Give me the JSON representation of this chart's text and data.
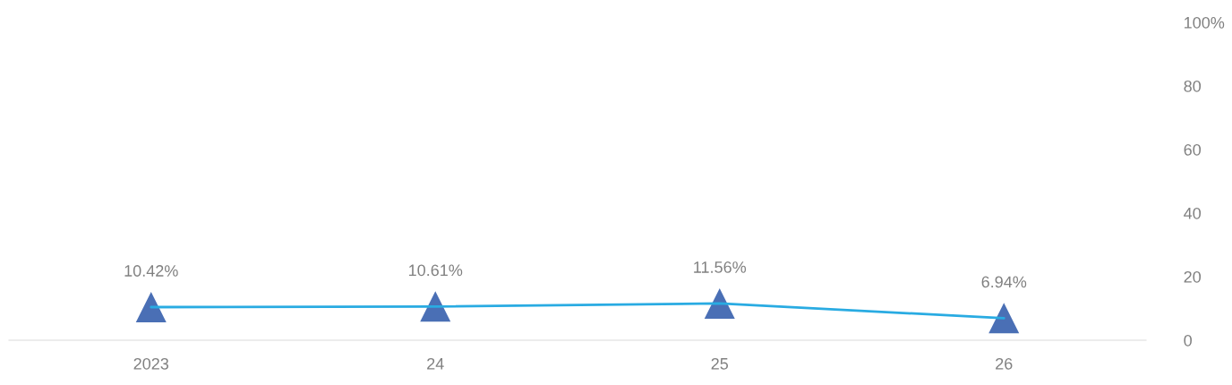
{
  "chart_data": {
    "type": "line",
    "categories": [
      "2023",
      "24",
      "25",
      "26"
    ],
    "series": [
      {
        "color": "#29abe2",
        "colors": [
          "#4a6fb5",
          "#4a6fb5",
          "#4a6fb5",
          "#4a6fb5"
        ],
        "values": [
          10.42,
          10.61,
          11.56,
          6.94
        ],
        "value_labels": [
          "10.42%",
          "10.61%",
          "11.56%",
          "6.94%"
        ]
      }
    ],
    "ylim": [
      0,
      100
    ],
    "yticks": [
      0,
      20,
      40,
      60,
      80,
      {
        "value": 100,
        "label": "100%"
      }
    ],
    "marker": "triangle",
    "grid": false,
    "legend": false
  }
}
